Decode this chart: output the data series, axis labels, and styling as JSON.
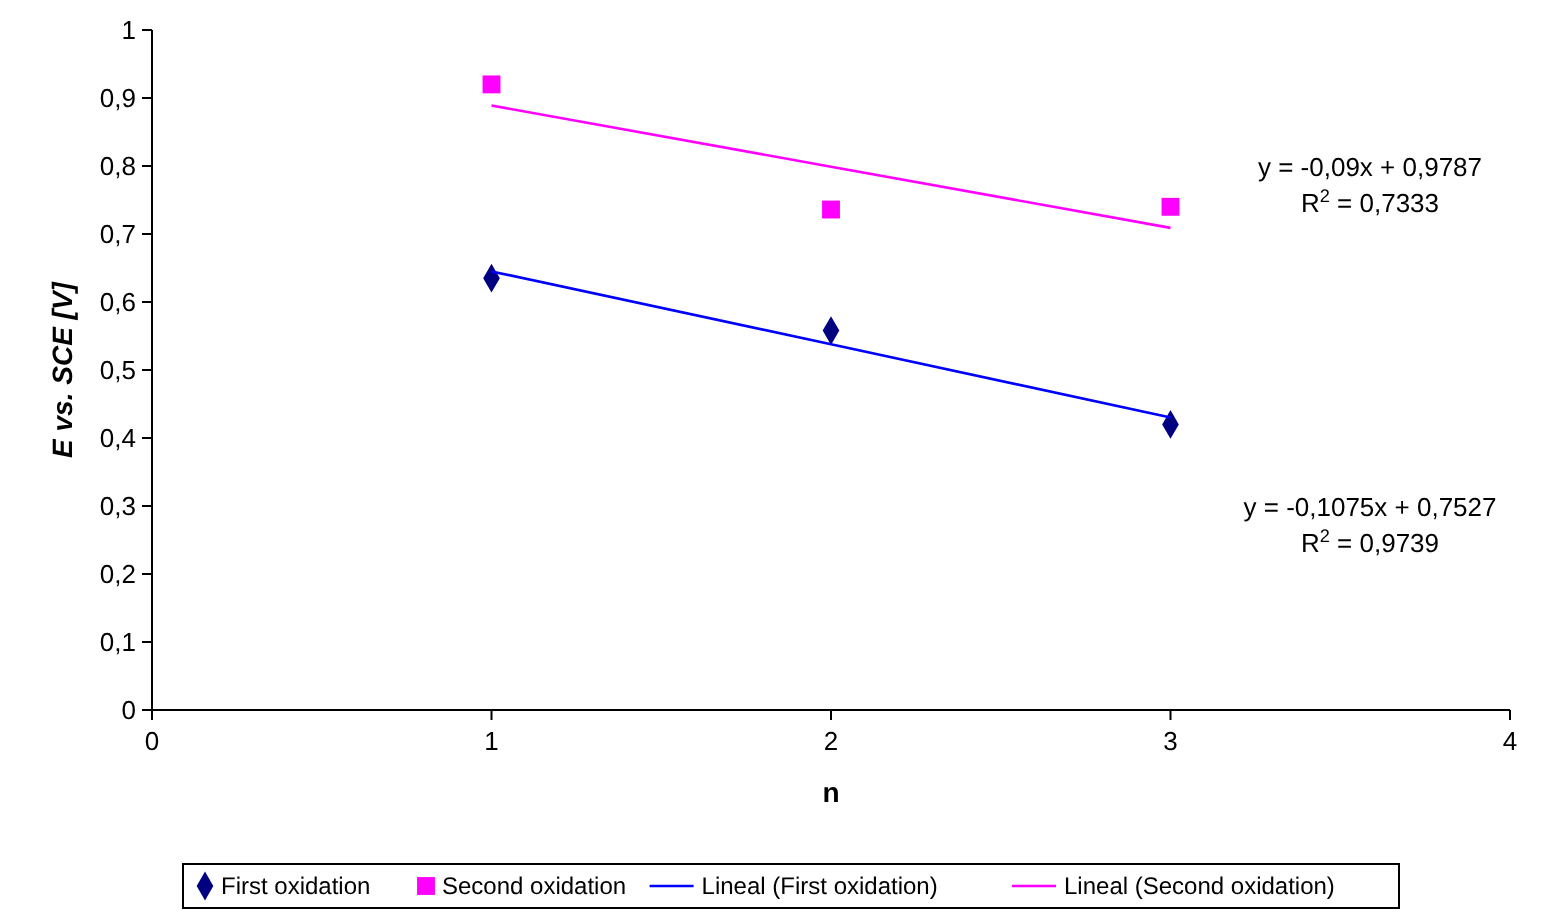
{
  "chart_data": {
    "type": "scatter",
    "xlabel": "n",
    "ylabel": "E vs. SCE [V]",
    "x": [
      1,
      2,
      3
    ],
    "series": [
      {
        "name": "First oxidation",
        "color": "#000080",
        "marker": "diamond",
        "values": [
          0.635,
          0.558,
          0.42
        ]
      },
      {
        "name": "Second oxidation",
        "color": "#ff00ff",
        "marker": "square",
        "values": [
          0.92,
          0.736,
          0.74
        ]
      },
      {
        "name": "Lineal (First oxidation)",
        "type": "line",
        "color": "#0000ff",
        "marker": "none",
        "values": [
          0.645,
          0.538,
          0.43
        ]
      },
      {
        "name": "Lineal (Second oxidation)",
        "type": "line",
        "color": "#ff00ff",
        "marker": "none",
        "values": [
          0.889,
          0.799,
          0.709
        ]
      }
    ],
    "xlim": [
      0,
      4
    ],
    "xticks": [
      0,
      1,
      2,
      3,
      4
    ],
    "ylim": [
      0,
      1
    ],
    "yticks": [
      0,
      {
        "value": 0.1,
        "label": "0,1"
      },
      {
        "value": 0.2,
        "label": "0,2"
      },
      {
        "value": 0.3,
        "label": "0,3"
      },
      {
        "value": 0.4,
        "label": "0,4"
      },
      {
        "value": 0.5,
        "label": "0,5"
      },
      {
        "value": 0.6,
        "label": "0,6"
      },
      {
        "value": 0.7,
        "label": "0,7"
      },
      {
        "value": 0.8,
        "label": "0,8"
      },
      {
        "value": 0.9,
        "label": "0,9"
      },
      1
    ],
    "annotations": [
      "y = -0,09x + 0,9787",
      "R$^{2}$ = 0,7333",
      "y = -0,1075x + 0,7527",
      "R$^{2}$ = 0,9739"
    ],
    "grid": false,
    "legend": "bottom"
  }
}
